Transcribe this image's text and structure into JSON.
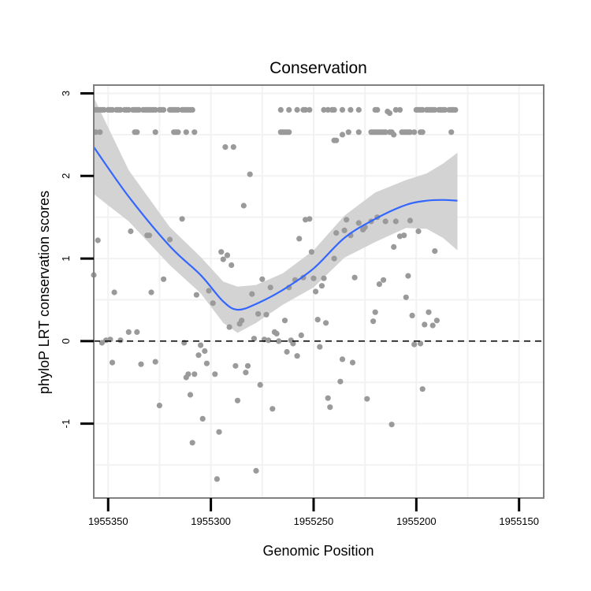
{
  "chart_data": {
    "type": "scatter",
    "title": "Conservation",
    "xlabel": "Genomic Position",
    "ylabel": "phyloP LRT conservation scores",
    "x_reversed": true,
    "xlim": [
      1955357,
      1955138
    ],
    "ylim": [
      -1.9,
      3.1
    ],
    "x_ticks": [
      1955350,
      1955300,
      1955250,
      1955200,
      1955150
    ],
    "x_tick_labels": [
      "1955350",
      "1955300",
      "1955250",
      "1955200",
      "1955150"
    ],
    "y_ticks": [
      -1,
      0,
      1,
      2,
      3
    ],
    "y_tick_labels": [
      "-1",
      "0",
      "1",
      "2",
      "3"
    ],
    "grid": true,
    "reference_line": {
      "y": 0,
      "style": "dashed",
      "color": "#000000"
    },
    "colors": {
      "points": "#9a9a9a",
      "smooth_line": "#3366ff",
      "confidence_band": "#d3d3d3",
      "grid": "#f2f2f2",
      "panel_border": "#808080"
    },
    "points": [
      [
        1955356,
        2.8
      ],
      [
        1955355,
        2.8
      ],
      [
        1955354,
        2.8
      ],
      [
        1955353,
        2.8
      ],
      [
        1955352,
        2.8
      ],
      [
        1955350,
        2.8
      ],
      [
        1955349,
        2.8
      ],
      [
        1955348,
        2.8
      ],
      [
        1955346,
        2.8
      ],
      [
        1955345,
        2.8
      ],
      [
        1955344,
        2.8
      ],
      [
        1955342,
        2.8
      ],
      [
        1955341,
        2.8
      ],
      [
        1955340,
        2.8
      ],
      [
        1955338,
        2.8
      ],
      [
        1955337,
        2.8
      ],
      [
        1955336,
        2.8
      ],
      [
        1955335,
        2.8
      ],
      [
        1955333,
        2.8
      ],
      [
        1955332,
        2.8
      ],
      [
        1955331,
        2.8
      ],
      [
        1955330,
        2.8
      ],
      [
        1955329,
        2.8
      ],
      [
        1955328,
        2.8
      ],
      [
        1955327,
        2.8
      ],
      [
        1955325,
        2.8
      ],
      [
        1955324,
        2.8
      ],
      [
        1955323,
        2.8
      ],
      [
        1955320,
        2.8
      ],
      [
        1955319,
        2.8
      ],
      [
        1955318,
        2.8
      ],
      [
        1955317,
        2.8
      ],
      [
        1955316,
        2.8
      ],
      [
        1955314,
        2.8
      ],
      [
        1955313,
        2.8
      ],
      [
        1955312,
        2.8
      ],
      [
        1955311,
        2.8
      ],
      [
        1955310,
        2.8
      ],
      [
        1955309,
        2.8
      ],
      [
        1955356,
        2.53
      ],
      [
        1955354,
        2.53
      ],
      [
        1955337,
        2.53
      ],
      [
        1955336,
        2.53
      ],
      [
        1955327,
        2.53
      ],
      [
        1955318,
        2.53
      ],
      [
        1955317,
        2.53
      ],
      [
        1955316,
        2.53
      ],
      [
        1955312,
        2.53
      ],
      [
        1955308,
        2.53
      ],
      [
        1955357,
        0.8
      ],
      [
        1955355,
        1.22
      ],
      [
        1955353,
        -0.02
      ],
      [
        1955351,
        0.01
      ],
      [
        1955349,
        0.02
      ],
      [
        1955348,
        -0.26
      ],
      [
        1955347,
        0.59
      ],
      [
        1955344,
        0.01
      ],
      [
        1955340,
        0.11
      ],
      [
        1955339,
        1.33
      ],
      [
        1955336,
        0.11
      ],
      [
        1955334,
        -0.28
      ],
      [
        1955331,
        1.28
      ],
      [
        1955330,
        1.28
      ],
      [
        1955329,
        0.59
      ],
      [
        1955327,
        -0.25
      ],
      [
        1955325,
        -0.78
      ],
      [
        1955323,
        0.75
      ],
      [
        1955320,
        1.23
      ],
      [
        1955314,
        1.48
      ],
      [
        1955313,
        -0.02
      ],
      [
        1955312,
        -0.44
      ],
      [
        1955311,
        -0.4
      ],
      [
        1955310,
        -0.65
      ],
      [
        1955309,
        -1.23
      ],
      [
        1955308,
        -0.4
      ],
      [
        1955307,
        0.56
      ],
      [
        1955306,
        -0.17
      ],
      [
        1955305,
        -0.05
      ],
      [
        1955304,
        -0.94
      ],
      [
        1955303,
        -0.12
      ],
      [
        1955302,
        -0.27
      ],
      [
        1955301,
        0.61
      ],
      [
        1955299,
        0.46
      ],
      [
        1955298,
        -0.4
      ],
      [
        1955297,
        -1.67
      ],
      [
        1955296,
        -1.1
      ],
      [
        1955295,
        1.08
      ],
      [
        1955294,
        0.99
      ],
      [
        1955293,
        2.35
      ],
      [
        1955292,
        1.04
      ],
      [
        1955291,
        0.17
      ],
      [
        1955290,
        0.92
      ],
      [
        1955289,
        2.35
      ],
      [
        1955288,
        -0.3
      ],
      [
        1955287,
        -0.72
      ],
      [
        1955286,
        0.21
      ],
      [
        1955285,
        0.25
      ],
      [
        1955284,
        1.64
      ],
      [
        1955283,
        -0.38
      ],
      [
        1955282,
        -0.3
      ],
      [
        1955281,
        2.02
      ],
      [
        1955280,
        0.57
      ],
      [
        1955279,
        0.03
      ],
      [
        1955278,
        -1.57
      ],
      [
        1955277,
        0.33
      ],
      [
        1955276,
        -0.53
      ],
      [
        1955275,
        0.75
      ],
      [
        1955274,
        0.02
      ],
      [
        1955273,
        0.32
      ],
      [
        1955272,
        0.01
      ],
      [
        1955271,
        0.65
      ],
      [
        1955270,
        -0.82
      ],
      [
        1955269,
        0.11
      ],
      [
        1955268,
        0.09
      ],
      [
        1955267,
        0.0
      ],
      [
        1955264,
        0.25
      ],
      [
        1955263,
        -0.13
      ],
      [
        1955262,
        0.65
      ],
      [
        1955261,
        0.01
      ],
      [
        1955260,
        -0.03
      ],
      [
        1955259,
        0.74
      ],
      [
        1955258,
        -0.18
      ],
      [
        1955257,
        1.24
      ],
      [
        1955256,
        0.07
      ],
      [
        1955255,
        0.77
      ],
      [
        1955254,
        1.47
      ],
      [
        1955252,
        1.48
      ],
      [
        1955251,
        1.08
      ],
      [
        1955250,
        0.76
      ],
      [
        1955249,
        0.6
      ],
      [
        1955248,
        0.26
      ],
      [
        1955247,
        -0.07
      ],
      [
        1955246,
        0.67
      ],
      [
        1955245,
        0.76
      ],
      [
        1955244,
        0.22
      ],
      [
        1955243,
        -0.69
      ],
      [
        1955242,
        -0.8
      ],
      [
        1955240,
        1.0
      ],
      [
        1955239,
        1.31
      ],
      [
        1955237,
        -0.49
      ],
      [
        1955236,
        -0.22
      ],
      [
        1955235,
        1.34
      ],
      [
        1955234,
        1.47
      ],
      [
        1955232,
        1.28
      ],
      [
        1955231,
        -0.26
      ],
      [
        1955230,
        0.77
      ],
      [
        1955228,
        1.43
      ],
      [
        1955226,
        1.35
      ],
      [
        1955225,
        1.38
      ],
      [
        1955224,
        -0.7
      ],
      [
        1955222,
        1.45
      ],
      [
        1955221,
        0.24
      ],
      [
        1955220,
        0.35
      ],
      [
        1955219,
        1.5
      ],
      [
        1955218,
        0.69
      ],
      [
        1955216,
        0.74
      ],
      [
        1955215,
        1.45
      ],
      [
        1955212,
        -1.01
      ],
      [
        1955211,
        1.14
      ],
      [
        1955210,
        1.45
      ],
      [
        1955208,
        1.27
      ],
      [
        1955206,
        1.28
      ],
      [
        1955205,
        0.53
      ],
      [
        1955204,
        0.79
      ],
      [
        1955203,
        1.46
      ],
      [
        1955202,
        0.31
      ],
      [
        1955201,
        -0.04
      ],
      [
        1955199,
        1.33
      ],
      [
        1955198,
        -0.03
      ],
      [
        1955197,
        -0.58
      ],
      [
        1955196,
        0.2
      ],
      [
        1955194,
        0.35
      ],
      [
        1955192,
        0.19
      ],
      [
        1955191,
        1.09
      ],
      [
        1955190,
        0.25
      ],
      [
        1955266,
        2.8
      ],
      [
        1955262,
        2.8
      ],
      [
        1955258,
        2.8
      ],
      [
        1955255,
        2.8
      ],
      [
        1955254,
        2.8
      ],
      [
        1955252,
        2.8
      ],
      [
        1955245,
        2.8
      ],
      [
        1955243,
        2.8
      ],
      [
        1955241,
        2.8
      ],
      [
        1955240,
        2.8
      ],
      [
        1955236,
        2.8
      ],
      [
        1955232,
        2.8
      ],
      [
        1955228,
        2.8
      ],
      [
        1955220,
        2.8
      ],
      [
        1955219,
        2.8
      ],
      [
        1955200,
        2.8
      ],
      [
        1955199,
        2.8
      ],
      [
        1955198,
        2.8
      ],
      [
        1955197,
        2.8
      ],
      [
        1955195,
        2.8
      ],
      [
        1955194,
        2.8
      ],
      [
        1955193,
        2.8
      ],
      [
        1955192,
        2.8
      ],
      [
        1955191,
        2.8
      ],
      [
        1955189,
        2.8
      ],
      [
        1955188,
        2.8
      ],
      [
        1955187,
        2.8
      ],
      [
        1955186,
        2.8
      ],
      [
        1955184,
        2.8
      ],
      [
        1955183,
        2.8
      ],
      [
        1955182,
        2.8
      ],
      [
        1955181,
        2.8
      ],
      [
        1955214,
        2.78
      ],
      [
        1955210,
        2.8
      ],
      [
        1955208,
        2.8
      ],
      [
        1955213,
        2.76
      ],
      [
        1955266,
        2.53
      ],
      [
        1955265,
        2.53
      ],
      [
        1955264,
        2.53
      ],
      [
        1955263,
        2.53
      ],
      [
        1955262,
        2.53
      ],
      [
        1955240,
        2.43
      ],
      [
        1955239,
        2.43
      ],
      [
        1955236,
        2.5
      ],
      [
        1955233,
        2.53
      ],
      [
        1955228,
        2.53
      ],
      [
        1955222,
        2.53
      ],
      [
        1955221,
        2.53
      ],
      [
        1955220,
        2.53
      ],
      [
        1955219,
        2.53
      ],
      [
        1955218,
        2.53
      ],
      [
        1955217,
        2.53
      ],
      [
        1955216,
        2.53
      ],
      [
        1955215,
        2.53
      ],
      [
        1955213,
        2.53
      ],
      [
        1955212,
        2.53
      ],
      [
        1955211,
        2.5
      ],
      [
        1955207,
        2.53
      ],
      [
        1955206,
        2.53
      ],
      [
        1955205,
        2.53
      ],
      [
        1955204,
        2.53
      ],
      [
        1955203,
        2.53
      ],
      [
        1955201,
        2.53
      ],
      [
        1955198,
        2.53
      ],
      [
        1955197,
        2.53
      ],
      [
        1955183,
        2.53
      ]
    ],
    "smooth": {
      "x": [
        1955357,
        1955340,
        1955320,
        1955305,
        1955294,
        1955287,
        1955278,
        1955265,
        1955250,
        1955235,
        1955220,
        1955205,
        1955195,
        1955187,
        1955180
      ],
      "y": [
        2.35,
        1.75,
        1.15,
        0.8,
        0.48,
        0.38,
        0.45,
        0.62,
        0.88,
        1.25,
        1.48,
        1.65,
        1.7,
        1.71,
        1.7
      ]
    },
    "band": {
      "x": [
        1955357,
        1955340,
        1955320,
        1955305,
        1955294,
        1955287,
        1955278,
        1955265,
        1955250,
        1955235,
        1955220,
        1955205,
        1955195,
        1955187,
        1955180
      ],
      "upper": [
        2.95,
        2.07,
        1.38,
        1.02,
        0.72,
        0.66,
        0.68,
        0.82,
        1.1,
        1.52,
        1.8,
        1.95,
        2.03,
        2.15,
        2.28
      ],
      "lower": [
        1.78,
        1.45,
        0.92,
        0.58,
        0.22,
        0.1,
        0.22,
        0.44,
        0.65,
        1.01,
        1.2,
        1.37,
        1.36,
        1.25,
        1.1
      ]
    }
  }
}
